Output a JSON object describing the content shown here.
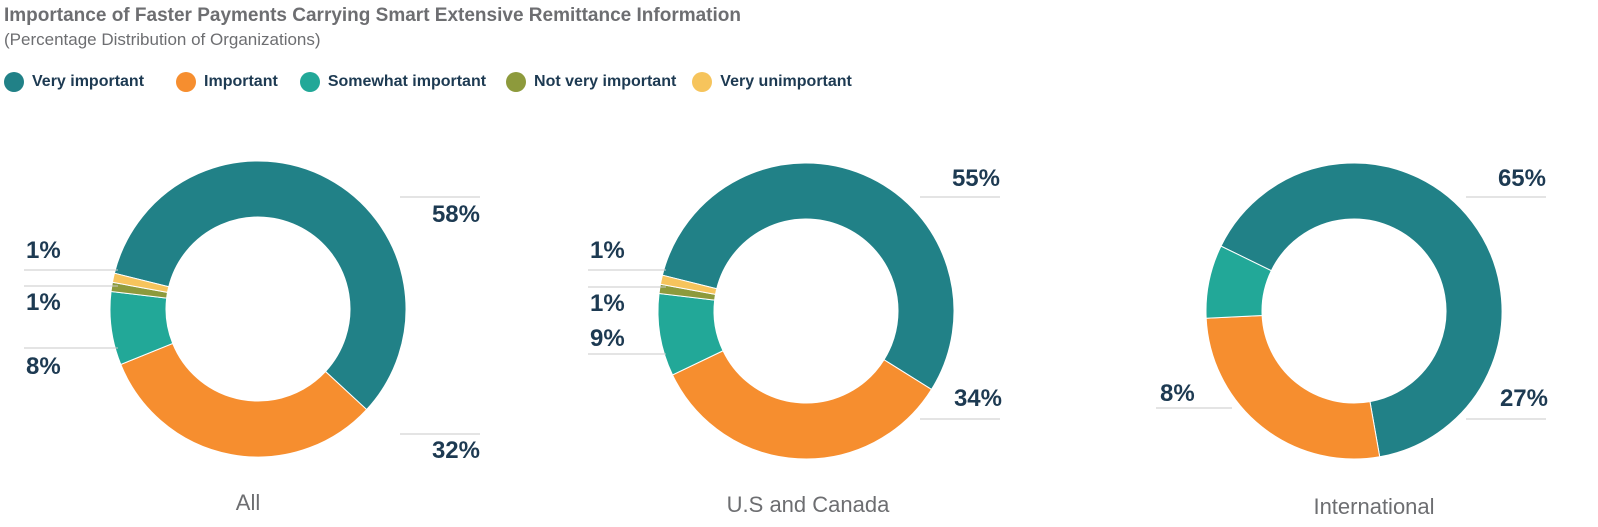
{
  "title": "Importance of Faster Payments Carrying Smart Extensive Remittance Information",
  "subtitle": "(Percentage Distribution of Organizations)",
  "legend": [
    {
      "label": "Very important",
      "color": "#218187"
    },
    {
      "label": "Important",
      "color": "#f68e2f"
    },
    {
      "label": "Somewhat important",
      "color": "#22a898"
    },
    {
      "label": "Not very important",
      "color": "#8d9a3c"
    },
    {
      "label": "Very unimportant",
      "color": "#f6c45c"
    }
  ],
  "chart_data": [
    {
      "type": "pie",
      "title": "All",
      "categories": [
        "Very important",
        "Important",
        "Somewhat important",
        "Not very important",
        "Very unimportant"
      ],
      "values": [
        58,
        32,
        8,
        1,
        1
      ],
      "labels": [
        "58%",
        "32%",
        "8%",
        "1%",
        "1%"
      ]
    },
    {
      "type": "pie",
      "title": "U.S and Canada",
      "categories": [
        "Very important",
        "Important",
        "Somewhat important",
        "Not very important",
        "Very unimportant"
      ],
      "values": [
        55,
        34,
        9,
        1,
        1
      ],
      "labels": [
        "55%",
        "34%",
        "9%",
        "1%",
        "1%"
      ]
    },
    {
      "type": "pie",
      "title": "International",
      "categories": [
        "Very important",
        "Important",
        "Somewhat important"
      ],
      "values": [
        65,
        27,
        8
      ],
      "labels": [
        "65%",
        "27%",
        "8%"
      ]
    }
  ]
}
